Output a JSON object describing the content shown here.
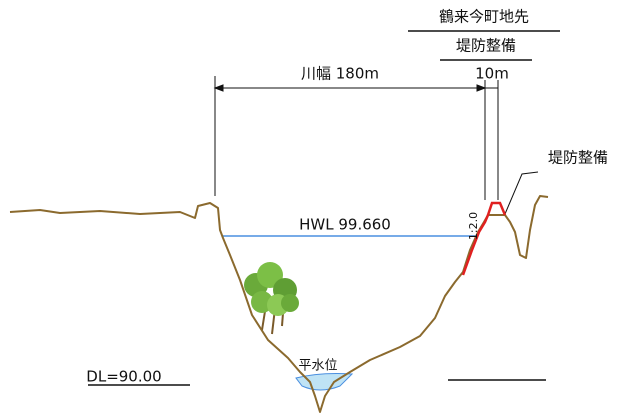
{
  "header": {
    "location": "鶴来今町地先",
    "project": "堤防整備"
  },
  "dimensions": {
    "river_width": "川幅 180m",
    "levee_width": "10m"
  },
  "labels": {
    "levee": "堤防整備",
    "hwl": "HWL 99.660",
    "slope": "1:2.0",
    "normal_water": "平水位",
    "datum": "DL=90.00"
  }
}
